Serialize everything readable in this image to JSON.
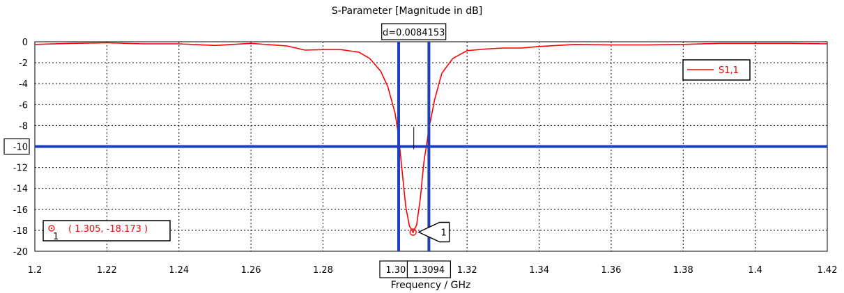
{
  "chart_data": {
    "type": "line",
    "title": "S-Parameter [Magnitude in dB]",
    "xlabel": "Frequency / GHz",
    "ylabel": "",
    "xlim": [
      1.2,
      1.42
    ],
    "ylim": [
      -20,
      0
    ],
    "x_ticks": [
      "1.2",
      "1.22",
      "1.24",
      "1.26",
      "1.28",
      "1.32",
      "1.34",
      "1.36",
      "1.38",
      "1.4",
      "1.42"
    ],
    "y_ticks": [
      "0",
      "-2",
      "-4",
      "-6",
      "-8",
      "-10",
      "-12",
      "-14",
      "-16",
      "-18",
      "-20"
    ],
    "grid": true,
    "legend_position": "top-right",
    "series": [
      {
        "name": "S1,1",
        "color": "#ff0000",
        "x": [
          1.2,
          1.21,
          1.22,
          1.23,
          1.24,
          1.25,
          1.26,
          1.27,
          1.275,
          1.28,
          1.285,
          1.29,
          1.293,
          1.296,
          1.298,
          1.3,
          1.301,
          1.302,
          1.303,
          1.304,
          1.305,
          1.306,
          1.307,
          1.308,
          1.309,
          1.3094,
          1.311,
          1.313,
          1.316,
          1.32,
          1.325,
          1.33,
          1.335,
          1.34,
          1.35,
          1.36,
          1.37,
          1.38,
          1.39,
          1.4,
          1.41,
          1.42
        ],
        "y": [
          -0.25,
          -0.15,
          -0.1,
          -0.2,
          -0.2,
          -0.35,
          -0.15,
          -0.4,
          -0.8,
          -0.75,
          -0.75,
          -1.0,
          -1.6,
          -2.8,
          -4.3,
          -6.8,
          -9.0,
          -12.5,
          -15.8,
          -17.6,
          -18.173,
          -17.5,
          -15.0,
          -11.5,
          -9.3,
          -8.3,
          -5.5,
          -3.0,
          -1.6,
          -0.85,
          -0.7,
          -0.6,
          -0.6,
          -0.45,
          -0.25,
          -0.3,
          -0.3,
          -0.25,
          -0.15,
          -0.15,
          -0.15,
          -0.2
        ]
      }
    ],
    "threshold_line": {
      "y": -10,
      "label": "-10",
      "color": "#1f3fbf"
    },
    "markers": [
      {
        "x": 1.301,
        "label": "1.301",
        "color": "#1f3fbf"
      },
      {
        "x": 1.3094,
        "label": "1.3094",
        "color": "#1f3fbf"
      }
    ],
    "delta_label": "d=0.0084153",
    "point_marker": {
      "x": 1.305,
      "y": -18.173,
      "id": "1",
      "readout": "( 1.305, -18.173 )"
    }
  }
}
